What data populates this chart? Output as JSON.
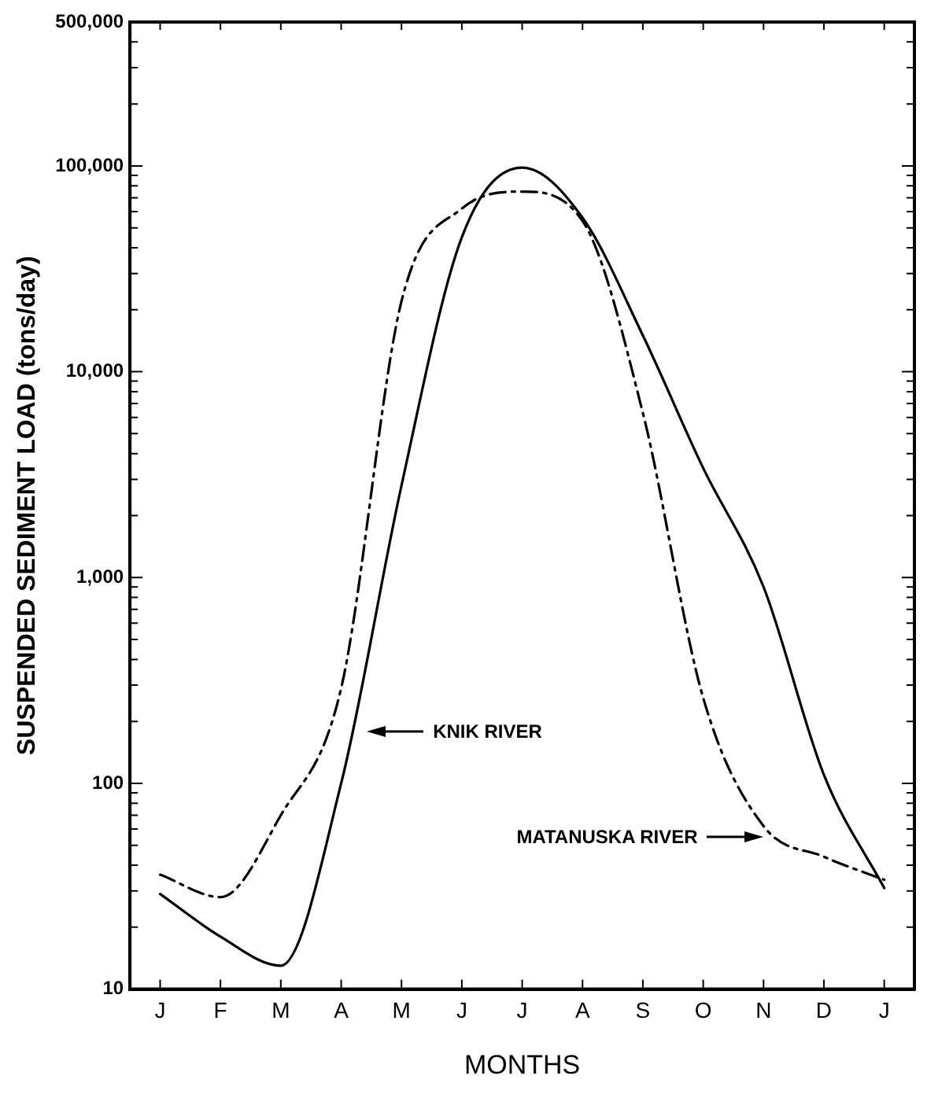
{
  "chart_data": {
    "type": "line",
    "xlabel": "MONTHS",
    "ylabel": "SUSPENDED SEDIMENT LOAD (tons/day)",
    "log": "y",
    "grid": false,
    "legend": false,
    "marker": "none",
    "categories": [
      "J",
      "F",
      "M",
      "A",
      "M",
      "J",
      "J",
      "A",
      "S",
      "O",
      "N",
      "D",
      "J"
    ],
    "ylim": [
      10,
      500000
    ],
    "yticks": [
      10,
      {
        "value": 20,
        "label": null
      },
      {
        "value": 30,
        "label": null
      },
      {
        "value": 40,
        "label": null
      },
      {
        "value": 50,
        "label": null
      },
      {
        "value": 60,
        "label": null
      },
      {
        "value": 70,
        "label": null
      },
      {
        "value": 80,
        "label": null
      },
      {
        "value": 90,
        "label": null
      },
      100,
      {
        "value": 200,
        "label": null
      },
      {
        "value": 300,
        "label": null
      },
      {
        "value": 400,
        "label": null
      },
      {
        "value": 500,
        "label": null
      },
      {
        "value": 600,
        "label": null
      },
      {
        "value": 700,
        "label": null
      },
      {
        "value": 800,
        "label": null
      },
      {
        "value": 900,
        "label": null
      },
      {
        "value": 1000,
        "label": "1,000"
      },
      {
        "value": 2000,
        "label": null
      },
      {
        "value": 3000,
        "label": null
      },
      {
        "value": 4000,
        "label": null
      },
      {
        "value": 5000,
        "label": null
      },
      {
        "value": 6000,
        "label": null
      },
      {
        "value": 7000,
        "label": null
      },
      {
        "value": 8000,
        "label": null
      },
      {
        "value": 9000,
        "label": null
      },
      {
        "value": 10000,
        "label": "10,000"
      },
      {
        "value": 20000,
        "label": null
      },
      {
        "value": 30000,
        "label": null
      },
      {
        "value": 40000,
        "label": null
      },
      {
        "value": 50000,
        "label": null
      },
      {
        "value": 60000,
        "label": null
      },
      {
        "value": 70000,
        "label": null
      },
      {
        "value": 80000,
        "label": null
      },
      {
        "value": 90000,
        "label": null
      },
      {
        "value": 100000,
        "label": "100,000"
      },
      {
        "value": 200000,
        "label": null
      },
      {
        "value": 300000,
        "label": null
      },
      {
        "value": 400000,
        "label": null
      },
      {
        "value": 500000,
        "label": "500,000"
      }
    ],
    "series": [
      {
        "color": "#000000",
        "line_style": "solid",
        "values": [
          29,
          18,
          13,
          100,
          2800,
          45000,
          98000,
          56000,
          15000,
          3400,
          900,
          110,
          31
        ]
      },
      {
        "color": "#000000",
        "line_style": "dashdot",
        "values": [
          36,
          28,
          70,
          290,
          22000,
          62000,
          75000,
          54000,
          6300,
          260,
          62,
          44,
          34
        ]
      }
    ],
    "annotations": [
      "KNIK RIVER",
      "MATANUSKA RIVER"
    ]
  }
}
